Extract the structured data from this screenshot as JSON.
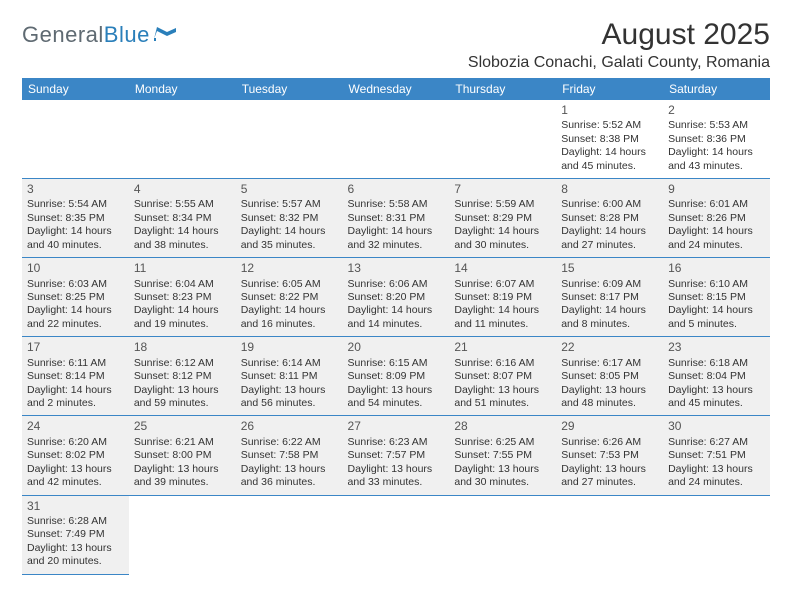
{
  "logo": {
    "part1": "General",
    "part2": "Blue"
  },
  "title": "August 2025",
  "location": "Slobozia Conachi, Galati County, Romania",
  "colors": {
    "header_bg": "#3b86c6",
    "header_fg": "#ffffff",
    "shade_bg": "#f0f0f0",
    "rule": "#3b86c6",
    "logo_gray": "#5f6a72",
    "logo_blue": "#2a7fba",
    "text": "#333333"
  },
  "weekdays": [
    "Sunday",
    "Monday",
    "Tuesday",
    "Wednesday",
    "Thursday",
    "Friday",
    "Saturday"
  ],
  "weeks": [
    [
      null,
      null,
      null,
      null,
      null,
      {
        "n": "1",
        "sr": "Sunrise: 5:52 AM",
        "ss": "Sunset: 8:38 PM",
        "d1": "Daylight: 14 hours",
        "d2": "and 45 minutes."
      },
      {
        "n": "2",
        "sr": "Sunrise: 5:53 AM",
        "ss": "Sunset: 8:36 PM",
        "d1": "Daylight: 14 hours",
        "d2": "and 43 minutes."
      }
    ],
    [
      {
        "n": "3",
        "sr": "Sunrise: 5:54 AM",
        "ss": "Sunset: 8:35 PM",
        "d1": "Daylight: 14 hours",
        "d2": "and 40 minutes."
      },
      {
        "n": "4",
        "sr": "Sunrise: 5:55 AM",
        "ss": "Sunset: 8:34 PM",
        "d1": "Daylight: 14 hours",
        "d2": "and 38 minutes."
      },
      {
        "n": "5",
        "sr": "Sunrise: 5:57 AM",
        "ss": "Sunset: 8:32 PM",
        "d1": "Daylight: 14 hours",
        "d2": "and 35 minutes."
      },
      {
        "n": "6",
        "sr": "Sunrise: 5:58 AM",
        "ss": "Sunset: 8:31 PM",
        "d1": "Daylight: 14 hours",
        "d2": "and 32 minutes."
      },
      {
        "n": "7",
        "sr": "Sunrise: 5:59 AM",
        "ss": "Sunset: 8:29 PM",
        "d1": "Daylight: 14 hours",
        "d2": "and 30 minutes."
      },
      {
        "n": "8",
        "sr": "Sunrise: 6:00 AM",
        "ss": "Sunset: 8:28 PM",
        "d1": "Daylight: 14 hours",
        "d2": "and 27 minutes."
      },
      {
        "n": "9",
        "sr": "Sunrise: 6:01 AM",
        "ss": "Sunset: 8:26 PM",
        "d1": "Daylight: 14 hours",
        "d2": "and 24 minutes."
      }
    ],
    [
      {
        "n": "10",
        "sr": "Sunrise: 6:03 AM",
        "ss": "Sunset: 8:25 PM",
        "d1": "Daylight: 14 hours",
        "d2": "and 22 minutes."
      },
      {
        "n": "11",
        "sr": "Sunrise: 6:04 AM",
        "ss": "Sunset: 8:23 PM",
        "d1": "Daylight: 14 hours",
        "d2": "and 19 minutes."
      },
      {
        "n": "12",
        "sr": "Sunrise: 6:05 AM",
        "ss": "Sunset: 8:22 PM",
        "d1": "Daylight: 14 hours",
        "d2": "and 16 minutes."
      },
      {
        "n": "13",
        "sr": "Sunrise: 6:06 AM",
        "ss": "Sunset: 8:20 PM",
        "d1": "Daylight: 14 hours",
        "d2": "and 14 minutes."
      },
      {
        "n": "14",
        "sr": "Sunrise: 6:07 AM",
        "ss": "Sunset: 8:19 PM",
        "d1": "Daylight: 14 hours",
        "d2": "and 11 minutes."
      },
      {
        "n": "15",
        "sr": "Sunrise: 6:09 AM",
        "ss": "Sunset: 8:17 PM",
        "d1": "Daylight: 14 hours",
        "d2": "and 8 minutes."
      },
      {
        "n": "16",
        "sr": "Sunrise: 6:10 AM",
        "ss": "Sunset: 8:15 PM",
        "d1": "Daylight: 14 hours",
        "d2": "and 5 minutes."
      }
    ],
    [
      {
        "n": "17",
        "sr": "Sunrise: 6:11 AM",
        "ss": "Sunset: 8:14 PM",
        "d1": "Daylight: 14 hours",
        "d2": "and 2 minutes."
      },
      {
        "n": "18",
        "sr": "Sunrise: 6:12 AM",
        "ss": "Sunset: 8:12 PM",
        "d1": "Daylight: 13 hours",
        "d2": "and 59 minutes."
      },
      {
        "n": "19",
        "sr": "Sunrise: 6:14 AM",
        "ss": "Sunset: 8:11 PM",
        "d1": "Daylight: 13 hours",
        "d2": "and 56 minutes."
      },
      {
        "n": "20",
        "sr": "Sunrise: 6:15 AM",
        "ss": "Sunset: 8:09 PM",
        "d1": "Daylight: 13 hours",
        "d2": "and 54 minutes."
      },
      {
        "n": "21",
        "sr": "Sunrise: 6:16 AM",
        "ss": "Sunset: 8:07 PM",
        "d1": "Daylight: 13 hours",
        "d2": "and 51 minutes."
      },
      {
        "n": "22",
        "sr": "Sunrise: 6:17 AM",
        "ss": "Sunset: 8:05 PM",
        "d1": "Daylight: 13 hours",
        "d2": "and 48 minutes."
      },
      {
        "n": "23",
        "sr": "Sunrise: 6:18 AM",
        "ss": "Sunset: 8:04 PM",
        "d1": "Daylight: 13 hours",
        "d2": "and 45 minutes."
      }
    ],
    [
      {
        "n": "24",
        "sr": "Sunrise: 6:20 AM",
        "ss": "Sunset: 8:02 PM",
        "d1": "Daylight: 13 hours",
        "d2": "and 42 minutes."
      },
      {
        "n": "25",
        "sr": "Sunrise: 6:21 AM",
        "ss": "Sunset: 8:00 PM",
        "d1": "Daylight: 13 hours",
        "d2": "and 39 minutes."
      },
      {
        "n": "26",
        "sr": "Sunrise: 6:22 AM",
        "ss": "Sunset: 7:58 PM",
        "d1": "Daylight: 13 hours",
        "d2": "and 36 minutes."
      },
      {
        "n": "27",
        "sr": "Sunrise: 6:23 AM",
        "ss": "Sunset: 7:57 PM",
        "d1": "Daylight: 13 hours",
        "d2": "and 33 minutes."
      },
      {
        "n": "28",
        "sr": "Sunrise: 6:25 AM",
        "ss": "Sunset: 7:55 PM",
        "d1": "Daylight: 13 hours",
        "d2": "and 30 minutes."
      },
      {
        "n": "29",
        "sr": "Sunrise: 6:26 AM",
        "ss": "Sunset: 7:53 PM",
        "d1": "Daylight: 13 hours",
        "d2": "and 27 minutes."
      },
      {
        "n": "30",
        "sr": "Sunrise: 6:27 AM",
        "ss": "Sunset: 7:51 PM",
        "d1": "Daylight: 13 hours",
        "d2": "and 24 minutes."
      }
    ],
    [
      {
        "n": "31",
        "sr": "Sunrise: 6:28 AM",
        "ss": "Sunset: 7:49 PM",
        "d1": "Daylight: 13 hours",
        "d2": "and 20 minutes."
      },
      null,
      null,
      null,
      null,
      null,
      null
    ]
  ]
}
